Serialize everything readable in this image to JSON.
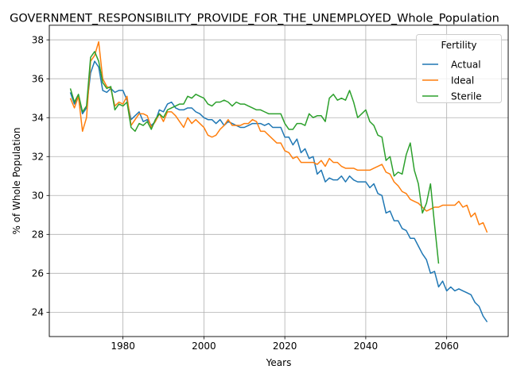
{
  "chart_data": {
    "type": "line",
    "title": "GOVERNMENT_RESPONSIBILITY_PROVIDE_FOR_THE_UNEMPLOYED_Whole_Population",
    "xlabel": "Years",
    "ylabel": "% of Whole Population",
    "xlim": [
      1961.8,
      2075.2
    ],
    "ylim": [
      22.75,
      38.75
    ],
    "xticks": [
      1980,
      2000,
      2020,
      2040,
      2060
    ],
    "yticks": [
      24,
      26,
      28,
      30,
      32,
      34,
      36,
      38
    ],
    "grid": true,
    "legend": {
      "title": "Fertility",
      "placement": "top-right"
    },
    "series": [
      {
        "name": "Actual",
        "color": "#1f77b4",
        "points": [
          [
            1967,
            35.3
          ],
          [
            1968,
            34.7
          ],
          [
            1969,
            35.1
          ],
          [
            1970,
            34.2
          ],
          [
            1971,
            34.5
          ],
          [
            1972,
            36.3
          ],
          [
            1973,
            36.9
          ],
          [
            1974,
            36.6
          ],
          [
            1975,
            35.4
          ],
          [
            1976,
            35.3
          ],
          [
            1977,
            35.5
          ],
          [
            1978,
            35.3
          ],
          [
            1979,
            35.4
          ],
          [
            1980,
            35.4
          ],
          [
            1981,
            34.9
          ],
          [
            1982,
            33.9
          ],
          [
            1983,
            34.1
          ],
          [
            1984,
            34.3
          ],
          [
            1985,
            33.8
          ],
          [
            1986,
            33.9
          ],
          [
            1987,
            33.6
          ],
          [
            1988,
            33.8
          ],
          [
            1989,
            34.4
          ],
          [
            1990,
            34.3
          ],
          [
            1991,
            34.7
          ],
          [
            1992,
            34.8
          ],
          [
            1993,
            34.5
          ],
          [
            1994,
            34.4
          ],
          [
            1995,
            34.4
          ],
          [
            1996,
            34.5
          ],
          [
            1997,
            34.5
          ],
          [
            1998,
            34.3
          ],
          [
            1999,
            34.2
          ],
          [
            2000,
            34.0
          ],
          [
            2001,
            33.9
          ],
          [
            2002,
            33.9
          ],
          [
            2003,
            33.7
          ],
          [
            2004,
            33.9
          ],
          [
            2005,
            33.6
          ],
          [
            2006,
            33.8
          ],
          [
            2007,
            33.7
          ],
          [
            2008,
            33.6
          ],
          [
            2009,
            33.5
          ],
          [
            2010,
            33.5
          ],
          [
            2011,
            33.6
          ],
          [
            2012,
            33.7
          ],
          [
            2013,
            33.7
          ],
          [
            2014,
            33.7
          ],
          [
            2015,
            33.6
          ],
          [
            2016,
            33.7
          ],
          [
            2017,
            33.5
          ],
          [
            2018,
            33.5
          ],
          [
            2019,
            33.5
          ],
          [
            2020,
            33.0
          ],
          [
            2021,
            33.0
          ],
          [
            2022,
            32.6
          ],
          [
            2023,
            32.9
          ],
          [
            2024,
            32.2
          ],
          [
            2025,
            32.4
          ],
          [
            2026,
            31.9
          ],
          [
            2027,
            32.0
          ],
          [
            2028,
            31.1
          ],
          [
            2029,
            31.3
          ],
          [
            2030,
            30.7
          ],
          [
            2031,
            30.9
          ],
          [
            2032,
            30.8
          ],
          [
            2033,
            30.8
          ],
          [
            2034,
            31.0
          ],
          [
            2035,
            30.7
          ],
          [
            2036,
            31.0
          ],
          [
            2037,
            30.8
          ],
          [
            2038,
            30.7
          ],
          [
            2039,
            30.7
          ],
          [
            2040,
            30.7
          ],
          [
            2041,
            30.4
          ],
          [
            2042,
            30.6
          ],
          [
            2043,
            30.1
          ],
          [
            2044,
            30.0
          ],
          [
            2045,
            29.1
          ],
          [
            2046,
            29.2
          ],
          [
            2047,
            28.7
          ],
          [
            2048,
            28.7
          ],
          [
            2049,
            28.3
          ],
          [
            2050,
            28.2
          ],
          [
            2051,
            27.8
          ],
          [
            2052,
            27.8
          ],
          [
            2053,
            27.4
          ],
          [
            2054,
            27.0
          ],
          [
            2055,
            26.7
          ],
          [
            2056,
            26.0
          ],
          [
            2057,
            26.1
          ],
          [
            2058,
            25.3
          ],
          [
            2059,
            25.6
          ],
          [
            2060,
            25.1
          ],
          [
            2061,
            25.3
          ],
          [
            2062,
            25.1
          ],
          [
            2063,
            25.2
          ],
          [
            2064,
            25.1
          ],
          [
            2065,
            25.0
          ],
          [
            2066,
            24.9
          ],
          [
            2067,
            24.5
          ],
          [
            2068,
            24.3
          ],
          [
            2069,
            23.8
          ],
          [
            2070,
            23.5
          ]
        ]
      },
      {
        "name": "Ideal",
        "color": "#ff7f0e",
        "points": [
          [
            1967,
            35.0
          ],
          [
            1968,
            34.5
          ],
          [
            1969,
            35.1
          ],
          [
            1970,
            33.3
          ],
          [
            1971,
            34.0
          ],
          [
            1972,
            36.9
          ],
          [
            1973,
            37.2
          ],
          [
            1974,
            37.9
          ],
          [
            1975,
            36.0
          ],
          [
            1976,
            35.6
          ],
          [
            1977,
            35.5
          ],
          [
            1978,
            34.6
          ],
          [
            1979,
            34.8
          ],
          [
            1980,
            34.7
          ],
          [
            1981,
            35.1
          ],
          [
            1982,
            33.6
          ],
          [
            1983,
            33.9
          ],
          [
            1984,
            34.2
          ],
          [
            1985,
            34.2
          ],
          [
            1986,
            34.1
          ],
          [
            1987,
            33.5
          ],
          [
            1988,
            33.8
          ],
          [
            1989,
            34.2
          ],
          [
            1990,
            33.8
          ],
          [
            1991,
            34.3
          ],
          [
            1992,
            34.3
          ],
          [
            1993,
            34.1
          ],
          [
            1994,
            33.8
          ],
          [
            1995,
            33.5
          ],
          [
            1996,
            34.0
          ],
          [
            1997,
            33.7
          ],
          [
            1998,
            33.9
          ],
          [
            1999,
            33.7
          ],
          [
            2000,
            33.5
          ],
          [
            2001,
            33.1
          ],
          [
            2002,
            33.0
          ],
          [
            2003,
            33.1
          ],
          [
            2004,
            33.4
          ],
          [
            2005,
            33.6
          ],
          [
            2006,
            33.9
          ],
          [
            2007,
            33.6
          ],
          [
            2008,
            33.6
          ],
          [
            2009,
            33.6
          ],
          [
            2010,
            33.7
          ],
          [
            2011,
            33.7
          ],
          [
            2012,
            33.9
          ],
          [
            2013,
            33.8
          ],
          [
            2014,
            33.3
          ],
          [
            2015,
            33.3
          ],
          [
            2016,
            33.1
          ],
          [
            2017,
            32.9
          ],
          [
            2018,
            32.7
          ],
          [
            2019,
            32.7
          ],
          [
            2020,
            32.3
          ],
          [
            2021,
            32.2
          ],
          [
            2022,
            31.9
          ],
          [
            2023,
            32.0
          ],
          [
            2024,
            31.7
          ],
          [
            2025,
            31.7
          ],
          [
            2026,
            31.7
          ],
          [
            2027,
            31.7
          ],
          [
            2028,
            31.6
          ],
          [
            2029,
            31.8
          ],
          [
            2030,
            31.5
          ],
          [
            2031,
            31.9
          ],
          [
            2032,
            31.7
          ],
          [
            2033,
            31.7
          ],
          [
            2034,
            31.5
          ],
          [
            2035,
            31.4
          ],
          [
            2036,
            31.4
          ],
          [
            2037,
            31.4
          ],
          [
            2038,
            31.3
          ],
          [
            2039,
            31.3
          ],
          [
            2040,
            31.3
          ],
          [
            2041,
            31.3
          ],
          [
            2042,
            31.4
          ],
          [
            2043,
            31.5
          ],
          [
            2044,
            31.6
          ],
          [
            2045,
            31.2
          ],
          [
            2046,
            31.1
          ],
          [
            2047,
            30.7
          ],
          [
            2048,
            30.5
          ],
          [
            2049,
            30.2
          ],
          [
            2050,
            30.1
          ],
          [
            2051,
            29.8
          ],
          [
            2052,
            29.7
          ],
          [
            2053,
            29.6
          ],
          [
            2054,
            29.4
          ],
          [
            2055,
            29.2
          ],
          [
            2056,
            29.3
          ],
          [
            2057,
            29.4
          ],
          [
            2058,
            29.4
          ],
          [
            2059,
            29.5
          ],
          [
            2060,
            29.5
          ],
          [
            2061,
            29.5
          ],
          [
            2062,
            29.5
          ],
          [
            2063,
            29.7
          ],
          [
            2064,
            29.4
          ],
          [
            2065,
            29.5
          ],
          [
            2066,
            28.9
          ],
          [
            2067,
            29.1
          ],
          [
            2068,
            28.5
          ],
          [
            2069,
            28.6
          ],
          [
            2070,
            28.1
          ]
        ]
      },
      {
        "name": "Sterile",
        "color": "#2ca02c",
        "points": [
          [
            1967,
            35.5
          ],
          [
            1968,
            34.8
          ],
          [
            1969,
            35.2
          ],
          [
            1970,
            34.3
          ],
          [
            1971,
            34.6
          ],
          [
            1972,
            37.1
          ],
          [
            1973,
            37.4
          ],
          [
            1974,
            36.9
          ],
          [
            1975,
            35.8
          ],
          [
            1976,
            35.5
          ],
          [
            1977,
            35.6
          ],
          [
            1978,
            34.4
          ],
          [
            1979,
            34.7
          ],
          [
            1980,
            34.6
          ],
          [
            1981,
            34.8
          ],
          [
            1982,
            33.5
          ],
          [
            1983,
            33.3
          ],
          [
            1984,
            33.7
          ],
          [
            1985,
            33.6
          ],
          [
            1986,
            33.8
          ],
          [
            1987,
            33.4
          ],
          [
            1988,
            33.9
          ],
          [
            1989,
            34.2
          ],
          [
            1990,
            34.0
          ],
          [
            1991,
            34.4
          ],
          [
            1992,
            34.5
          ],
          [
            1993,
            34.6
          ],
          [
            1994,
            34.7
          ],
          [
            1995,
            34.7
          ],
          [
            1996,
            35.1
          ],
          [
            1997,
            35.0
          ],
          [
            1998,
            35.2
          ],
          [
            1999,
            35.1
          ],
          [
            2000,
            35.0
          ],
          [
            2001,
            34.7
          ],
          [
            2002,
            34.6
          ],
          [
            2003,
            34.8
          ],
          [
            2004,
            34.8
          ],
          [
            2005,
            34.9
          ],
          [
            2006,
            34.8
          ],
          [
            2007,
            34.6
          ],
          [
            2008,
            34.8
          ],
          [
            2009,
            34.7
          ],
          [
            2010,
            34.7
          ],
          [
            2011,
            34.6
          ],
          [
            2012,
            34.5
          ],
          [
            2013,
            34.4
          ],
          [
            2014,
            34.4
          ],
          [
            2015,
            34.3
          ],
          [
            2016,
            34.2
          ],
          [
            2017,
            34.2
          ],
          [
            2018,
            34.2
          ],
          [
            2019,
            34.2
          ],
          [
            2020,
            33.7
          ],
          [
            2021,
            33.4
          ],
          [
            2022,
            33.4
          ],
          [
            2023,
            33.7
          ],
          [
            2024,
            33.7
          ],
          [
            2025,
            33.6
          ],
          [
            2026,
            34.2
          ],
          [
            2027,
            34.0
          ],
          [
            2028,
            34.1
          ],
          [
            2029,
            34.1
          ],
          [
            2030,
            33.8
          ],
          [
            2031,
            35.0
          ],
          [
            2032,
            35.2
          ],
          [
            2033,
            34.9
          ],
          [
            2034,
            35.0
          ],
          [
            2035,
            34.9
          ],
          [
            2036,
            35.4
          ],
          [
            2037,
            34.8
          ],
          [
            2038,
            34.0
          ],
          [
            2039,
            34.2
          ],
          [
            2040,
            34.4
          ],
          [
            2041,
            33.8
          ],
          [
            2042,
            33.6
          ],
          [
            2043,
            33.1
          ],
          [
            2044,
            33.0
          ],
          [
            2045,
            31.8
          ],
          [
            2046,
            32.0
          ],
          [
            2047,
            31.0
          ],
          [
            2048,
            31.2
          ],
          [
            2049,
            31.1
          ],
          [
            2050,
            32.1
          ],
          [
            2051,
            32.7
          ],
          [
            2052,
            31.3
          ],
          [
            2053,
            30.6
          ],
          [
            2054,
            29.1
          ],
          [
            2055,
            29.6
          ],
          [
            2056,
            30.6
          ],
          [
            2057,
            28.5
          ],
          [
            2058,
            26.5
          ]
        ]
      }
    ]
  }
}
